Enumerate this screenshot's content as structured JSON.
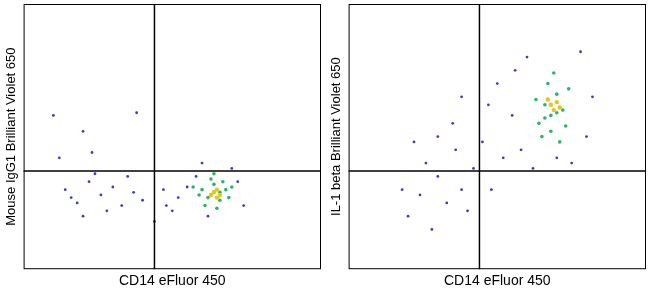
{
  "chart_data": [
    {
      "type": "scatter",
      "x_label": "CD14 eFluor 450",
      "y_label": "Mouse IgG1 Brilliant Violet 650",
      "xlim": [
        0,
        100
      ],
      "ylim": [
        0,
        100
      ],
      "tick_labels": false,
      "grid": false,
      "gates": {
        "x": 44,
        "y": 37
      },
      "series": [
        {
          "color": "#3d3dbf",
          "values": [
            [
              14,
              30
            ],
            [
              18,
              25
            ],
            [
              22,
              33
            ],
            [
              26,
              28
            ],
            [
              30,
              31
            ],
            [
              33,
              24
            ],
            [
              37,
              29
            ],
            [
              20,
              20
            ],
            [
              28,
              22
            ],
            [
              35,
              35
            ],
            [
              16,
              27
            ],
            [
              40,
              26
            ],
            [
              24,
              36
            ],
            [
              52,
              27
            ],
            [
              55,
              31
            ],
            [
              50,
              22
            ],
            [
              58,
              35
            ],
            [
              72,
              33
            ],
            [
              74,
              24
            ],
            [
              47,
              30
            ],
            [
              12,
              42
            ],
            [
              20,
              52
            ],
            [
              23,
              44
            ],
            [
              38,
              59
            ],
            [
              10,
              58
            ],
            [
              48,
              24
            ],
            [
              62,
              20
            ],
            [
              70,
              38
            ],
            [
              44,
              18
            ],
            [
              60,
              40
            ]
          ]
        },
        {
          "color": "#2fb36b",
          "values": [
            [
              60,
              30
            ],
            [
              62,
              27
            ],
            [
              64,
              32
            ],
            [
              66,
              26
            ],
            [
              68,
              30
            ],
            [
              63,
              34
            ],
            [
              59,
              28
            ],
            [
              61,
              24
            ],
            [
              67,
              33
            ],
            [
              69,
              27
            ],
            [
              65,
              23
            ],
            [
              57,
              31
            ],
            [
              70,
              31
            ],
            [
              64,
              36
            ],
            [
              66,
              29
            ]
          ]
        },
        {
          "color": "#e6c619",
          "values": [
            [
              64,
              29
            ],
            [
              65,
              30
            ],
            [
              66,
              28
            ],
            [
              63,
              28
            ],
            [
              65,
              27
            ]
          ]
        }
      ]
    },
    {
      "type": "scatter",
      "x_label": "CD14 eFluor 450",
      "y_label": "IL-1 beta Brilliant Violet 650",
      "xlim": [
        0,
        100
      ],
      "ylim": [
        0,
        100
      ],
      "tick_labels": false,
      "grid": false,
      "gates": {
        "x": 44,
        "y": 37
      },
      "series": [
        {
          "color": "#3d3dbf",
          "values": [
            [
              20,
              20
            ],
            [
              24,
              28
            ],
            [
              28,
              15
            ],
            [
              30,
              35
            ],
            [
              33,
              25
            ],
            [
              36,
              45
            ],
            [
              38,
              30
            ],
            [
              40,
              22
            ],
            [
              26,
              40
            ],
            [
              18,
              30
            ],
            [
              42,
              38
            ],
            [
              35,
              55
            ],
            [
              30,
              50
            ],
            [
              38,
              65
            ],
            [
              45,
              48
            ],
            [
              48,
              30
            ],
            [
              52,
              42
            ],
            [
              55,
              58
            ],
            [
              50,
              70
            ],
            [
              60,
              80
            ],
            [
              78,
              82
            ],
            [
              80,
              50
            ],
            [
              75,
              40
            ],
            [
              58,
              45
            ],
            [
              62,
              38
            ],
            [
              70,
              42
            ],
            [
              82,
              65
            ],
            [
              56,
              75
            ],
            [
              47,
              62
            ],
            [
              22,
              48
            ]
          ]
        },
        {
          "color": "#2fb36b",
          "values": [
            [
              64,
              55
            ],
            [
              66,
              62
            ],
            [
              68,
              58
            ],
            [
              70,
              66
            ],
            [
              72,
              60
            ],
            [
              67,
              70
            ],
            [
              65,
              50
            ],
            [
              73,
              54
            ],
            [
              69,
              74
            ],
            [
              63,
              64
            ],
            [
              71,
              48
            ],
            [
              68,
              52
            ],
            [
              74,
              68
            ],
            [
              66,
              57
            ],
            [
              70,
              59
            ]
          ]
        },
        {
          "color": "#e6c619",
          "values": [
            [
              68,
              62
            ],
            [
              69,
              60
            ],
            [
              70,
              63
            ],
            [
              67,
              64
            ],
            [
              71,
              61
            ]
          ]
        }
      ]
    }
  ]
}
